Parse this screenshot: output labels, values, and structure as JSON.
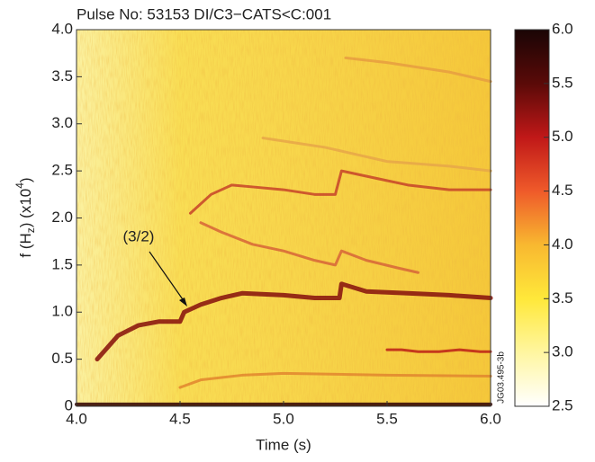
{
  "chart_data": {
    "type": "spectrogram",
    "title": "Pulse No: 53153 DI/C3−CATS<C:001",
    "xlabel": "Time (s)",
    "ylabel_parts": [
      "f (H",
      "z",
      ") (x10",
      "4",
      ")"
    ],
    "annotation": "(3/2)",
    "side_label": "JG03.495-3b",
    "xlim": [
      4.0,
      6.0
    ],
    "ylim": [
      0,
      4.0
    ],
    "xticks": [
      {
        "value": 4,
        "label": "4.0"
      },
      4.5,
      {
        "value": 5,
        "label": "5.0"
      },
      5.5,
      {
        "value": 6,
        "label": "6.0"
      }
    ],
    "yticks": [
      0,
      0.5,
      {
        "value": 1,
        "label": "1.0"
      },
      1.5,
      {
        "value": 2,
        "label": "2.0"
      },
      2.5,
      {
        "value": 3,
        "label": "3.0"
      },
      3.5,
      {
        "value": 4,
        "label": "4.0"
      }
    ],
    "clim": [
      2.5,
      6.0
    ],
    "cticks": [
      2.5,
      {
        "value": 3,
        "label": "3.0"
      },
      3.5,
      {
        "value": 4,
        "label": "4.0"
      },
      4.5,
      {
        "value": 5,
        "label": "5.0"
      },
      5.5,
      {
        "value": 6,
        "label": "6.0"
      }
    ],
    "colormap": [
      "#ffffff",
      "#fff6a0",
      "#ffe83a",
      "#f8b830",
      "#ef5a2a",
      "#c01818",
      "#5a0a08",
      "#1a0505"
    ],
    "series": [
      {
        "color": "#8c1a10",
        "x": [
          4.1,
          4.2,
          4.3,
          4.4,
          4.5,
          4.52,
          4.6,
          4.7,
          4.8,
          5.0,
          5.15,
          5.27,
          5.28,
          5.4,
          5.6,
          5.8,
          6.0
        ],
        "values": [
          0.5,
          0.75,
          0.86,
          0.9,
          0.9,
          1.0,
          1.08,
          1.15,
          1.2,
          1.18,
          1.15,
          1.15,
          1.3,
          1.22,
          1.2,
          1.18,
          1.15
        ]
      },
      {
        "color": "#c94a2a",
        "x": [
          4.55,
          4.65,
          4.75,
          4.85,
          5.0,
          5.15,
          5.25,
          5.28,
          5.45,
          5.6,
          5.8,
          6.0
        ],
        "values": [
          2.05,
          2.25,
          2.35,
          2.33,
          2.3,
          2.25,
          2.25,
          2.5,
          2.42,
          2.35,
          2.3,
          2.3
        ]
      },
      {
        "color": "#d86a38",
        "x": [
          4.6,
          4.7,
          4.85,
          5.0,
          5.15,
          5.25,
          5.28,
          5.4,
          5.55,
          5.65
        ],
        "values": [
          1.95,
          1.85,
          1.72,
          1.65,
          1.55,
          1.5,
          1.65,
          1.55,
          1.47,
          1.42
        ]
      },
      {
        "color": "#e28a30",
        "x": [
          4.5,
          4.6,
          4.8,
          5.0,
          5.5,
          6.0
        ],
        "values": [
          0.2,
          0.28,
          0.33,
          0.35,
          0.33,
          0.32
        ]
      },
      {
        "color": "#c02818",
        "x": [
          5.5,
          5.57,
          5.65,
          5.75,
          5.85,
          5.95,
          6.0
        ],
        "values": [
          0.6,
          0.6,
          0.58,
          0.58,
          0.6,
          0.58,
          0.58
        ]
      },
      {
        "color": "#e8a040",
        "x": [
          5.3,
          5.5,
          5.8,
          6.0
        ],
        "values": [
          3.7,
          3.65,
          3.55,
          3.45
        ]
      },
      {
        "color": "#e8a848",
        "x": [
          4.9,
          5.2,
          5.5,
          5.8,
          6.0
        ],
        "values": [
          2.85,
          2.75,
          2.6,
          2.55,
          2.5
        ]
      },
      {
        "color": "#3a0c08",
        "x": [
          4.0,
          6.0
        ],
        "values": [
          0.02,
          0.02
        ]
      }
    ]
  }
}
